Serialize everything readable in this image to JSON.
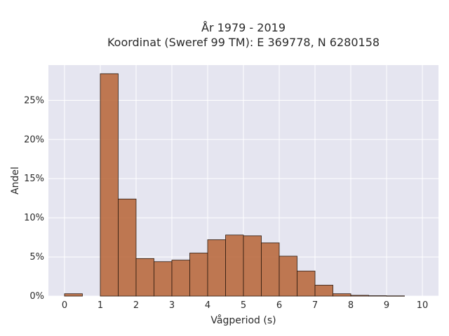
{
  "chart_data": {
    "type": "bar",
    "title_lines": [
      "År 1979 - 2019",
      "Koordinat (Sweref 99 TM): E 369778, N 6280158"
    ],
    "xlabel": "Vågperiod (s)",
    "ylabel": "Andel",
    "xlim": [
      -0.45,
      10.45
    ],
    "ylim": [
      0,
      0.295
    ],
    "x_ticks": [
      0,
      1,
      2,
      3,
      4,
      5,
      6,
      7,
      8,
      9,
      10
    ],
    "y_ticks": [
      0,
      0.05,
      0.1,
      0.15,
      0.2,
      0.25
    ],
    "y_tick_labels": [
      "0%",
      "5%",
      "10%",
      "15%",
      "20%",
      "25%"
    ],
    "bin_width": 0.5,
    "bins": [
      {
        "start": 0.0,
        "value": 0.003
      },
      {
        "start": 1.0,
        "value": 0.284
      },
      {
        "start": 1.5,
        "value": 0.124
      },
      {
        "start": 2.0,
        "value": 0.048
      },
      {
        "start": 2.5,
        "value": 0.044
      },
      {
        "start": 3.0,
        "value": 0.046
      },
      {
        "start": 3.5,
        "value": 0.055
      },
      {
        "start": 4.0,
        "value": 0.072
      },
      {
        "start": 4.5,
        "value": 0.078
      },
      {
        "start": 5.0,
        "value": 0.077
      },
      {
        "start": 5.5,
        "value": 0.068
      },
      {
        "start": 6.0,
        "value": 0.051
      },
      {
        "start": 6.5,
        "value": 0.032
      },
      {
        "start": 7.0,
        "value": 0.014
      },
      {
        "start": 7.5,
        "value": 0.003
      },
      {
        "start": 8.0,
        "value": 0.001
      },
      {
        "start": 8.5,
        "value": 0.0005
      },
      {
        "start": 9.0,
        "value": 0.0003
      }
    ],
    "grid": true,
    "bar_color": "#b8683a",
    "plot_background": "#e5e5f0"
  }
}
